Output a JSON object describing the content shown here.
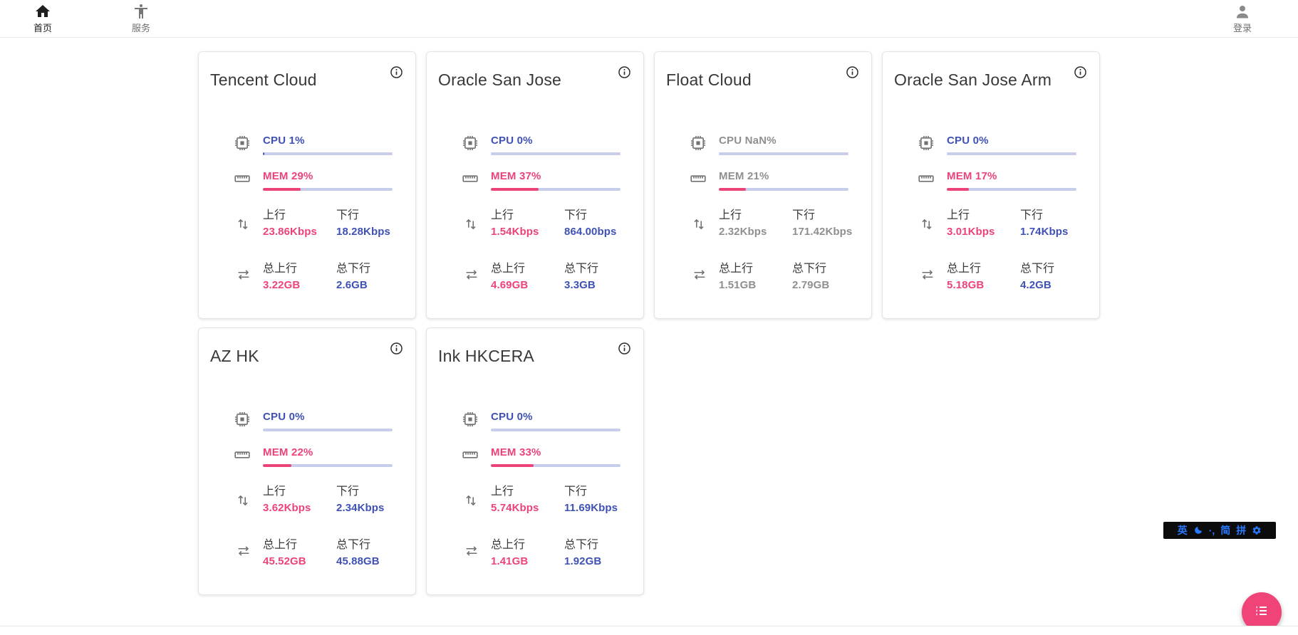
{
  "nav": {
    "items": [
      {
        "label": "首页",
        "icon": "home-icon",
        "active": true
      },
      {
        "label": "服务",
        "icon": "accessibility-icon",
        "active": false
      }
    ],
    "login_label": "登录"
  },
  "card_labels": {
    "up": "上行",
    "down": "下行",
    "total_up": "总上行",
    "total_down": "总下行"
  },
  "servers": [
    {
      "name": "Tencent Cloud",
      "cpu_text": "CPU 1%",
      "cpu_pct": 1,
      "mem_text": "MEM 29%",
      "mem_pct": 29,
      "offline": false,
      "up": "23.86Kbps",
      "down": "18.28Kbps",
      "total_up": "3.22GB",
      "total_down": "2.6GB"
    },
    {
      "name": "Oracle San Jose",
      "cpu_text": "CPU 0%",
      "cpu_pct": 0,
      "mem_text": "MEM 37%",
      "mem_pct": 37,
      "offline": false,
      "up": "1.54Kbps",
      "down": "864.00bps",
      "total_up": "4.69GB",
      "total_down": "3.3GB"
    },
    {
      "name": "Float Cloud",
      "cpu_text": "CPU NaN%",
      "cpu_pct": 0,
      "mem_text": "MEM 21%",
      "mem_pct": 21,
      "offline": true,
      "up": "2.32Kbps",
      "down": "171.42Kbps",
      "total_up": "1.51GB",
      "total_down": "2.79GB"
    },
    {
      "name": "Oracle San Jose Arm",
      "cpu_text": "CPU 0%",
      "cpu_pct": 0,
      "mem_text": "MEM 17%",
      "mem_pct": 17,
      "offline": false,
      "up": "3.01Kbps",
      "down": "1.74Kbps",
      "total_up": "5.18GB",
      "total_down": "4.2GB"
    },
    {
      "name": "AZ HK",
      "cpu_text": "CPU 0%",
      "cpu_pct": 0,
      "mem_text": "MEM 22%",
      "mem_pct": 22,
      "offline": false,
      "up": "3.62Kbps",
      "down": "2.34Kbps",
      "total_up": "45.52GB",
      "total_down": "45.88GB"
    },
    {
      "name": "Ink HKCERA",
      "cpu_text": "CPU 0%",
      "cpu_pct": 0,
      "mem_text": "MEM 33%",
      "mem_pct": 33,
      "offline": false,
      "up": "5.74Kbps",
      "down": "11.69Kbps",
      "total_up": "1.41GB",
      "total_down": "1.92GB"
    }
  ],
  "ime_bar": {
    "lang": "英",
    "punct": "·,",
    "charset": "简",
    "scheme": "拼"
  },
  "colors": {
    "accent_blue": "#3f51b5",
    "accent_pink": "#ec4379",
    "fab_pink": "#f04378",
    "bar_track": "#c9cdec",
    "offline_gray": "#8f8f8f"
  }
}
